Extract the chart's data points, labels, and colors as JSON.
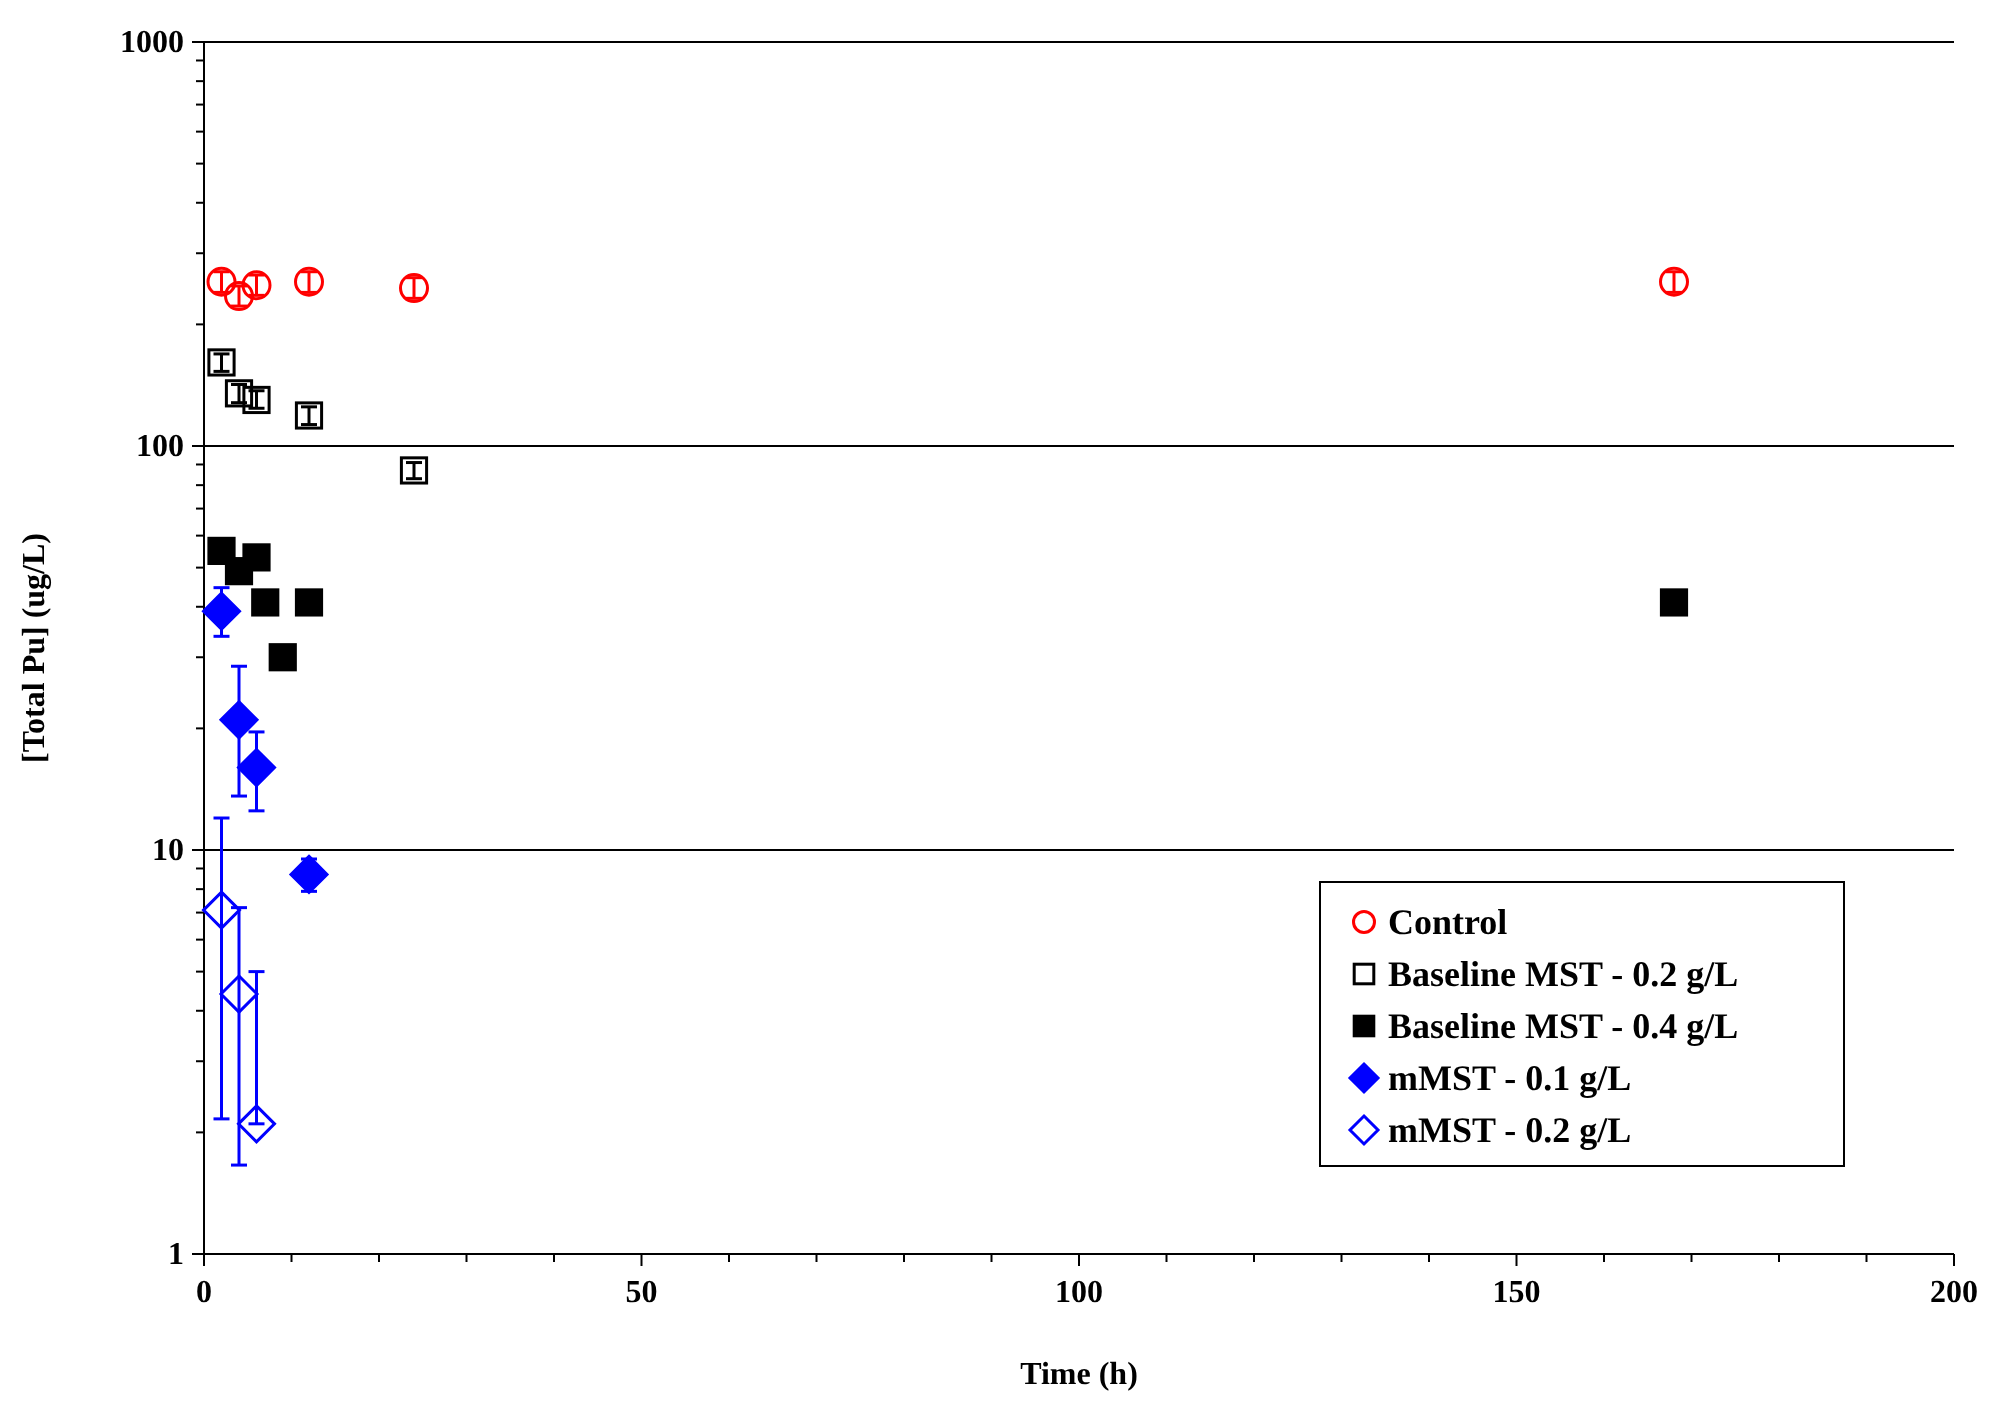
{
  "chart_data": {
    "type": "scatter",
    "xlabel": "Time (h)",
    "ylabel": "[Total Pu] (ug/L)",
    "log": "y",
    "xlim": [
      0,
      200
    ],
    "ylim": [
      1,
      1000
    ],
    "xticks": [
      0,
      {
        "value": 10,
        "label": null
      },
      {
        "value": 20,
        "label": null
      },
      {
        "value": 30,
        "label": null
      },
      {
        "value": 40,
        "label": null
      },
      50,
      {
        "value": 60,
        "label": null
      },
      {
        "value": 70,
        "label": null
      },
      {
        "value": 80,
        "label": null
      },
      {
        "value": 90,
        "label": null
      },
      100,
      {
        "value": 110,
        "label": null
      },
      {
        "value": 120,
        "label": null
      },
      {
        "value": 130,
        "label": null
      },
      {
        "value": 140,
        "label": null
      },
      150,
      {
        "value": 160,
        "label": null
      },
      {
        "value": 170,
        "label": null
      },
      {
        "value": 180,
        "label": null
      },
      {
        "value": 190,
        "label": null
      },
      200
    ],
    "yticks": [
      1,
      {
        "value": 2,
        "label": null
      },
      {
        "value": 3,
        "label": null
      },
      {
        "value": 4,
        "label": null
      },
      {
        "value": 5,
        "label": null
      },
      {
        "value": 6,
        "label": null
      },
      {
        "value": 7,
        "label": null
      },
      {
        "value": 8,
        "label": null
      },
      {
        "value": 9,
        "label": null
      },
      10,
      {
        "value": 20,
        "label": null
      },
      {
        "value": 30,
        "label": null
      },
      {
        "value": 40,
        "label": null
      },
      {
        "value": 50,
        "label": null
      },
      {
        "value": 60,
        "label": null
      },
      {
        "value": 70,
        "label": null
      },
      {
        "value": 80,
        "label": null
      },
      {
        "value": 90,
        "label": null
      },
      100,
      {
        "value": 200,
        "label": null
      },
      {
        "value": 300,
        "label": null
      },
      {
        "value": 400,
        "label": null
      },
      {
        "value": 500,
        "label": null
      },
      {
        "value": 600,
        "label": null
      },
      {
        "value": 700,
        "label": null
      },
      {
        "value": 800,
        "label": null
      },
      {
        "value": 900,
        "label": null
      },
      1000
    ],
    "grid": "y",
    "legend": "bottom right",
    "series": [
      {
        "name": "Control",
        "color": "#ff0000",
        "marker": "circle",
        "x": [
          2,
          4,
          6,
          12,
          24,
          168
        ],
        "values": [
          255,
          235,
          250,
          255,
          246,
          255
        ],
        "errors": [
          [
            240,
            270
          ],
          [
            222,
            249
          ],
          [
            236,
            265
          ],
          [
            240,
            270
          ],
          [
            232,
            261
          ],
          [
            240,
            270
          ]
        ]
      },
      {
        "name": "Baseline MST - 0.2 g/L",
        "color": "#000000",
        "marker": "square",
        "x": [
          2,
          4,
          6,
          12,
          24
        ],
        "values": [
          161,
          135,
          130,
          119,
          87
        ],
        "errors": [
          [
            153,
            169
          ],
          [
            128,
            142
          ],
          [
            124,
            137
          ],
          [
            113,
            125
          ],
          [
            83,
            91
          ]
        ]
      },
      {
        "name": "Baseline MST - 0.4 g/L",
        "color": "#000000",
        "marker": "square",
        "x": [
          2,
          4,
          6,
          7,
          9,
          12,
          168
        ],
        "values": [
          55,
          49,
          53,
          41,
          30,
          41,
          41
        ]
      },
      {
        "name": "mMST - 0.1 g/L",
        "color": "#0000ff",
        "marker": "diamond",
        "x": [
          2,
          4,
          6,
          12
        ],
        "values": [
          39,
          21,
          16,
          8.7
        ],
        "errors": [
          [
            33.8,
            44.6
          ],
          [
            13.6,
            28.5
          ],
          [
            12.5,
            19.6
          ],
          [
            7.9,
            9.5
          ]
        ]
      },
      {
        "name": "mMST - 0.2 g/L",
        "color": "#0000ff",
        "marker": "diamond",
        "x": [
          2,
          4,
          6
        ],
        "values": [
          7.1,
          4.4,
          2.1
        ],
        "errors": [
          [
            2.16,
            12.0
          ],
          [
            1.66,
            7.2
          ],
          [
            2.1,
            5.0
          ]
        ]
      }
    ]
  }
}
